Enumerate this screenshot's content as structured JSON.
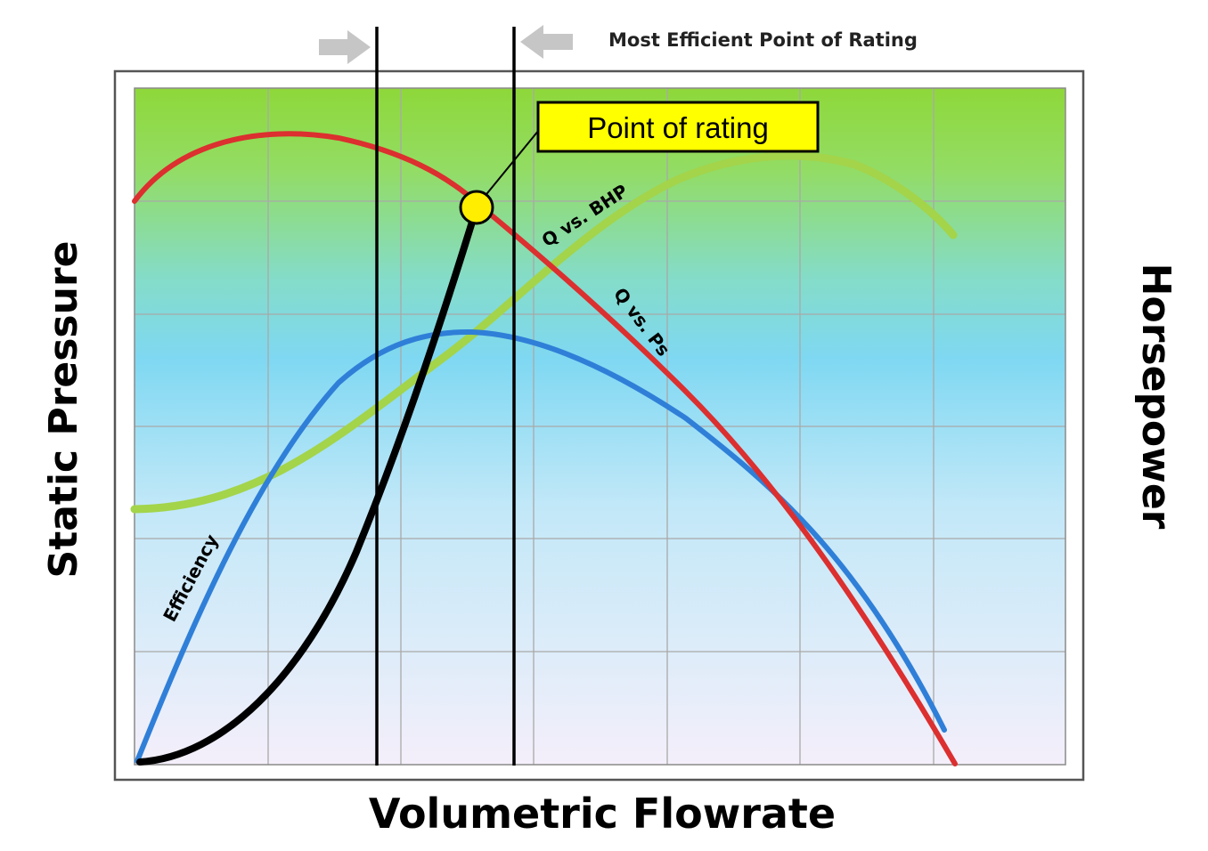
{
  "header": {
    "legend_text": "Most Efficient Point of Rating"
  },
  "axes": {
    "y_left_label": "Static Pressure",
    "y_right_label": "Horsepower",
    "x_label": "Volumetric Flowrate"
  },
  "callout": {
    "text": "Point of rating"
  },
  "curves": {
    "bhp_label": "Q vs. BHP",
    "ps_label": "Q vs. Ps",
    "efficiency_label": "Efficiency",
    "colors": {
      "pressure": "#dc2f2f",
      "bhp": "#a3d44a",
      "efficiency": "#2f7fd8",
      "system": "#000000",
      "rating_point": "#ffee00"
    }
  },
  "background": {
    "gradient_top": "#8ed83a",
    "gradient_mid": "#7fd8f2",
    "gradient_bottom": "#f4effa",
    "arrow_color": "#c6c6c6"
  }
}
